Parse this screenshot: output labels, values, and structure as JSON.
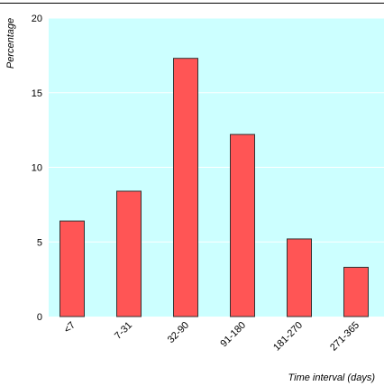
{
  "chart_data": {
    "type": "bar",
    "title": "",
    "ylabel": "Percentage",
    "xlabel": "Time interval (days)",
    "categories": [
      "<7",
      "7-31",
      "32-90",
      "91-180",
      "181-270",
      "271-365"
    ],
    "values": [
      6.4,
      8.4,
      17.3,
      12.2,
      5.2,
      3.3
    ],
    "ylim": [
      0,
      20
    ],
    "yticks": [
      0,
      5,
      10,
      15,
      20
    ],
    "grid": true,
    "colors": {
      "plot_background": "#ccffff",
      "bar_fill": "#ff5555",
      "bar_stroke": "#333333",
      "gridline": "#ffffff"
    }
  }
}
